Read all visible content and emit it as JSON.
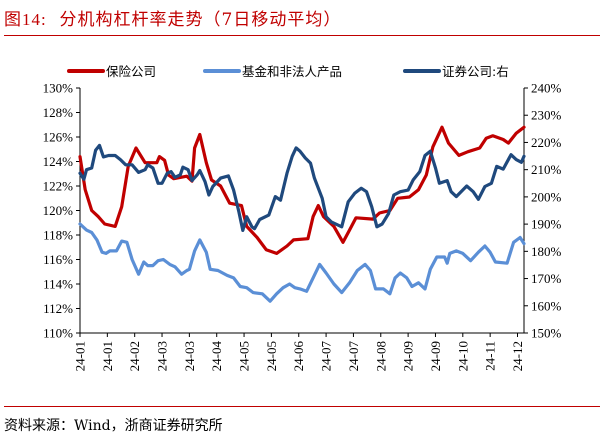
{
  "title": {
    "prefix": "图14:",
    "text": "分机构杠杆率走势（7日移动平均）"
  },
  "source": "资料来源：Wind，浙商证券研究所",
  "chart_data": {
    "type": "line",
    "title": "分机构杠杆率走势（7日移动平均）",
    "x_tick_labels": [
      "24-01",
      "24-01",
      "24-02",
      "24-03",
      "24-03",
      "24-04",
      "24-05",
      "24-05",
      "24-06",
      "24-07",
      "24-07",
      "24-08",
      "24-09",
      "24-09",
      "24-10",
      "24-11",
      "24-12"
    ],
    "y_left": {
      "ticks": [
        "110%",
        "112%",
        "114%",
        "116%",
        "118%",
        "120%",
        "122%",
        "124%",
        "126%",
        "128%",
        "130%"
      ],
      "range": [
        110,
        130
      ]
    },
    "y_right": {
      "ticks": [
        "150%",
        "160%",
        "170%",
        "180%",
        "190%",
        "200%",
        "210%",
        "220%",
        "230%",
        "240%"
      ],
      "range": [
        150,
        240
      ]
    },
    "legend_placement": "top",
    "grid": false,
    "series": [
      {
        "name": "保险公司",
        "axis": "left",
        "color": "#c00000",
        "points": [
          [
            "2024-01-02",
            124.4
          ],
          [
            "2024-01-06",
            121.7
          ],
          [
            "2024-01-11",
            120.0
          ],
          [
            "2024-01-16",
            119.5
          ],
          [
            "2024-01-21",
            118.9
          ],
          [
            "2024-01-29",
            118.7
          ],
          [
            "2024-02-03",
            120.3
          ],
          [
            "2024-02-08",
            123.6
          ],
          [
            "2024-02-14",
            125.1
          ],
          [
            "2024-02-21",
            123.9
          ],
          [
            "2024-03-01",
            123.9
          ],
          [
            "2024-03-03",
            124.4
          ],
          [
            "2024-03-07",
            124.1
          ],
          [
            "2024-03-10",
            122.9
          ],
          [
            "2024-03-14",
            122.6
          ],
          [
            "2024-03-24",
            122.8
          ],
          [
            "2024-03-28",
            122.4
          ],
          [
            "2024-03-30",
            125.1
          ],
          [
            "2024-04-03",
            126.2
          ],
          [
            "2024-04-08",
            123.9
          ],
          [
            "2024-04-12",
            122.5
          ],
          [
            "2024-04-19",
            122.0
          ],
          [
            "2024-04-26",
            120.6
          ],
          [
            "2024-05-05",
            120.4
          ],
          [
            "2024-05-09",
            118.7
          ],
          [
            "2024-05-17",
            117.8
          ],
          [
            "2024-05-24",
            116.8
          ],
          [
            "2024-06-01",
            116.5
          ],
          [
            "2024-06-09",
            117.1
          ],
          [
            "2024-06-14",
            117.6
          ],
          [
            "2024-06-25",
            117.7
          ],
          [
            "2024-06-29",
            119.5
          ],
          [
            "2024-07-03",
            120.4
          ],
          [
            "2024-07-07",
            119.5
          ],
          [
            "2024-07-15",
            118.7
          ],
          [
            "2024-07-22",
            117.4
          ],
          [
            "2024-07-27",
            118.4
          ],
          [
            "2024-08-01",
            119.4
          ],
          [
            "2024-08-14",
            119.3
          ],
          [
            "2024-08-19",
            119.8
          ],
          [
            "2024-08-27",
            120.0
          ],
          [
            "2024-09-02",
            121.0
          ],
          [
            "2024-09-11",
            121.1
          ],
          [
            "2024-09-18",
            121.7
          ],
          [
            "2024-09-24",
            122.9
          ],
          [
            "2024-09-29",
            125.2
          ],
          [
            "2024-10-06",
            126.8
          ],
          [
            "2024-10-11",
            125.5
          ],
          [
            "2024-10-19",
            124.5
          ],
          [
            "2024-10-26",
            124.8
          ],
          [
            "2024-11-04",
            125.1
          ],
          [
            "2024-11-09",
            125.9
          ],
          [
            "2024-11-14",
            126.1
          ],
          [
            "2024-11-22",
            125.8
          ],
          [
            "2024-11-26",
            125.5
          ],
          [
            "2024-12-02",
            126.3
          ],
          [
            "2024-12-08",
            126.8
          ]
        ]
      },
      {
        "name": "基金和非法人产品",
        "axis": "left",
        "color": "#5b8fd6",
        "points": [
          [
            "2024-01-02",
            118.9
          ],
          [
            "2024-01-07",
            118.4
          ],
          [
            "2024-01-11",
            118.2
          ],
          [
            "2024-01-15",
            117.6
          ],
          [
            "2024-01-19",
            116.6
          ],
          [
            "2024-01-22",
            116.5
          ],
          [
            "2024-01-25",
            116.7
          ],
          [
            "2024-01-30",
            116.7
          ],
          [
            "2024-02-03",
            117.5
          ],
          [
            "2024-02-07",
            117.4
          ],
          [
            "2024-02-11",
            116.0
          ],
          [
            "2024-02-16",
            114.8
          ],
          [
            "2024-02-20",
            115.8
          ],
          [
            "2024-02-23",
            115.5
          ],
          [
            "2024-02-27",
            115.5
          ],
          [
            "2024-03-02",
            115.9
          ],
          [
            "2024-03-06",
            116.0
          ],
          [
            "2024-03-11",
            115.6
          ],
          [
            "2024-03-15",
            115.4
          ],
          [
            "2024-03-20",
            114.8
          ],
          [
            "2024-03-24",
            115.1
          ],
          [
            "2024-03-26",
            115.2
          ],
          [
            "2024-03-30",
            116.7
          ],
          [
            "2024-04-03",
            117.6
          ],
          [
            "2024-04-08",
            116.6
          ],
          [
            "2024-04-11",
            115.2
          ],
          [
            "2024-04-17",
            115.1
          ],
          [
            "2024-04-24",
            114.7
          ],
          [
            "2024-04-29",
            114.5
          ],
          [
            "2024-05-04",
            113.8
          ],
          [
            "2024-05-09",
            113.7
          ],
          [
            "2024-05-14",
            113.3
          ],
          [
            "2024-05-21",
            113.2
          ],
          [
            "2024-05-27",
            112.6
          ],
          [
            "2024-06-01",
            113.2
          ],
          [
            "2024-06-06",
            113.7
          ],
          [
            "2024-06-11",
            114.0
          ],
          [
            "2024-06-15",
            113.7
          ],
          [
            "2024-06-19",
            113.6
          ],
          [
            "2024-06-24",
            113.4
          ],
          [
            "2024-06-29",
            114.5
          ],
          [
            "2024-07-04",
            115.6
          ],
          [
            "2024-07-09",
            114.9
          ],
          [
            "2024-07-15",
            114.0
          ],
          [
            "2024-07-21",
            113.3
          ],
          [
            "2024-07-27",
            114.1
          ],
          [
            "2024-08-02",
            115.1
          ],
          [
            "2024-08-08",
            115.6
          ],
          [
            "2024-08-12",
            115.1
          ],
          [
            "2024-08-16",
            113.6
          ],
          [
            "2024-08-22",
            113.6
          ],
          [
            "2024-08-27",
            113.2
          ],
          [
            "2024-08-31",
            114.5
          ],
          [
            "2024-09-04",
            114.9
          ],
          [
            "2024-09-09",
            114.5
          ],
          [
            "2024-09-13",
            113.8
          ],
          [
            "2024-09-18",
            114.1
          ],
          [
            "2024-09-23",
            113.6
          ],
          [
            "2024-09-27",
            115.2
          ],
          [
            "2024-10-02",
            116.2
          ],
          [
            "2024-10-08",
            116.2
          ],
          [
            "2024-10-10",
            115.7
          ],
          [
            "2024-10-12",
            116.5
          ],
          [
            "2024-10-17",
            116.7
          ],
          [
            "2024-10-22",
            116.5
          ],
          [
            "2024-10-28",
            115.9
          ],
          [
            "2024-11-03",
            116.6
          ],
          [
            "2024-11-08",
            117.1
          ],
          [
            "2024-11-12",
            116.6
          ],
          [
            "2024-11-16",
            115.8
          ],
          [
            "2024-11-25",
            115.7
          ],
          [
            "2024-11-30",
            117.4
          ],
          [
            "2024-12-05",
            117.8
          ],
          [
            "2024-12-08",
            117.3
          ]
        ]
      },
      {
        "name": "证券公司:右",
        "axis": "right",
        "color": "#1f497d",
        "points": [
          [
            "2024-01-02",
            208.7
          ],
          [
            "2024-01-05",
            206.5
          ],
          [
            "2024-01-07",
            210.0
          ],
          [
            "2024-01-11",
            210.6
          ],
          [
            "2024-01-14",
            217.1
          ],
          [
            "2024-01-17",
            218.9
          ],
          [
            "2024-01-20",
            214.7
          ],
          [
            "2024-01-24",
            215.2
          ],
          [
            "2024-01-29",
            215.2
          ],
          [
            "2024-02-02",
            213.7
          ],
          [
            "2024-02-06",
            211.8
          ],
          [
            "2024-02-11",
            211.8
          ],
          [
            "2024-02-16",
            209.0
          ],
          [
            "2024-02-21",
            210.0
          ],
          [
            "2024-02-23",
            211.8
          ],
          [
            "2024-02-27",
            210.6
          ],
          [
            "2024-03-02",
            205.0
          ],
          [
            "2024-03-05",
            205.0
          ],
          [
            "2024-03-09",
            208.7
          ],
          [
            "2024-03-12",
            209.3
          ],
          [
            "2024-03-15",
            207.2
          ],
          [
            "2024-03-19",
            208.1
          ],
          [
            "2024-03-21",
            210.9
          ],
          [
            "2024-03-25",
            210.0
          ],
          [
            "2024-03-28",
            206.0
          ],
          [
            "2024-04-01",
            208.1
          ],
          [
            "2024-04-03",
            209.7
          ],
          [
            "2024-04-07",
            205.6
          ],
          [
            "2024-04-10",
            200.7
          ],
          [
            "2024-04-13",
            203.8
          ],
          [
            "2024-04-19",
            206.9
          ],
          [
            "2024-04-25",
            207.7
          ],
          [
            "2024-04-29",
            202.5
          ],
          [
            "2024-05-03",
            194.5
          ],
          [
            "2024-05-06",
            187.7
          ],
          [
            "2024-05-09",
            192.7
          ],
          [
            "2024-05-13",
            189.0
          ],
          [
            "2024-05-15",
            188.3
          ],
          [
            "2024-05-19",
            191.7
          ],
          [
            "2024-05-26",
            193.3
          ],
          [
            "2024-05-31",
            200.1
          ],
          [
            "2024-06-04",
            198.8
          ],
          [
            "2024-06-09",
            208.7
          ],
          [
            "2024-06-13",
            214.9
          ],
          [
            "2024-06-16",
            218.0
          ],
          [
            "2024-06-19",
            216.8
          ],
          [
            "2024-06-23",
            214.3
          ],
          [
            "2024-06-27",
            212.4
          ],
          [
            "2024-06-30",
            206.9
          ],
          [
            "2024-07-06",
            199.5
          ],
          [
            "2024-07-09",
            192.7
          ],
          [
            "2024-07-13",
            190.8
          ],
          [
            "2024-07-21",
            189.0
          ],
          [
            "2024-07-26",
            198.2
          ],
          [
            "2024-07-31",
            201.3
          ],
          [
            "2024-08-05",
            203.2
          ],
          [
            "2024-08-09",
            201.9
          ],
          [
            "2024-08-13",
            196.4
          ],
          [
            "2024-08-17",
            189.0
          ],
          [
            "2024-08-21",
            190.0
          ],
          [
            "2024-08-26",
            193.9
          ],
          [
            "2024-08-30",
            200.7
          ],
          [
            "2024-09-04",
            201.9
          ],
          [
            "2024-09-10",
            202.5
          ],
          [
            "2024-09-14",
            206.3
          ],
          [
            "2024-09-19",
            209.3
          ],
          [
            "2024-09-23",
            215.2
          ],
          [
            "2024-09-27",
            216.8
          ],
          [
            "2024-10-01",
            210.6
          ],
          [
            "2024-10-04",
            205.0
          ],
          [
            "2024-10-10",
            206.0
          ],
          [
            "2024-10-13",
            201.9
          ],
          [
            "2024-10-17",
            200.1
          ],
          [
            "2024-10-25",
            204.0
          ],
          [
            "2024-10-30",
            201.9
          ],
          [
            "2024-11-03",
            199.1
          ],
          [
            "2024-11-08",
            203.8
          ],
          [
            "2024-11-13",
            205.0
          ],
          [
            "2024-11-17",
            211.2
          ],
          [
            "2024-11-22",
            210.2
          ],
          [
            "2024-11-28",
            215.5
          ],
          [
            "2024-12-02",
            213.7
          ],
          [
            "2024-12-06",
            212.7
          ],
          [
            "2024-12-08",
            214.9
          ]
        ]
      }
    ]
  }
}
